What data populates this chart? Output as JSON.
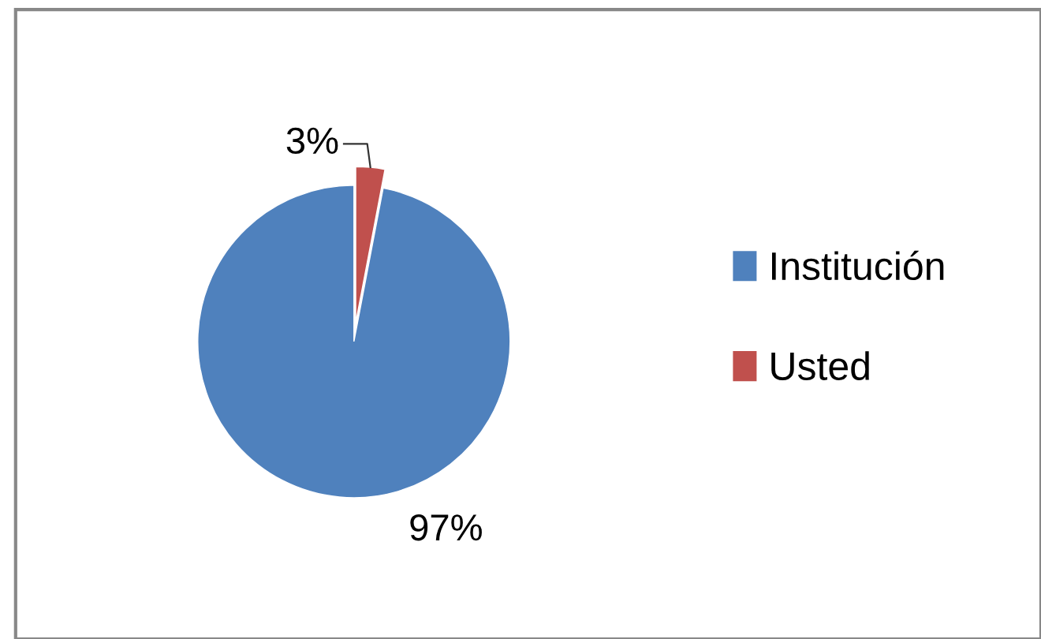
{
  "chart_data": {
    "type": "pie",
    "categories": [
      "Institución",
      "Usted"
    ],
    "values": [
      97,
      3
    ],
    "colors": [
      "#4f81bd",
      "#c0504d"
    ],
    "value_labels": [
      "97%",
      "3%"
    ],
    "legend": "right"
  }
}
